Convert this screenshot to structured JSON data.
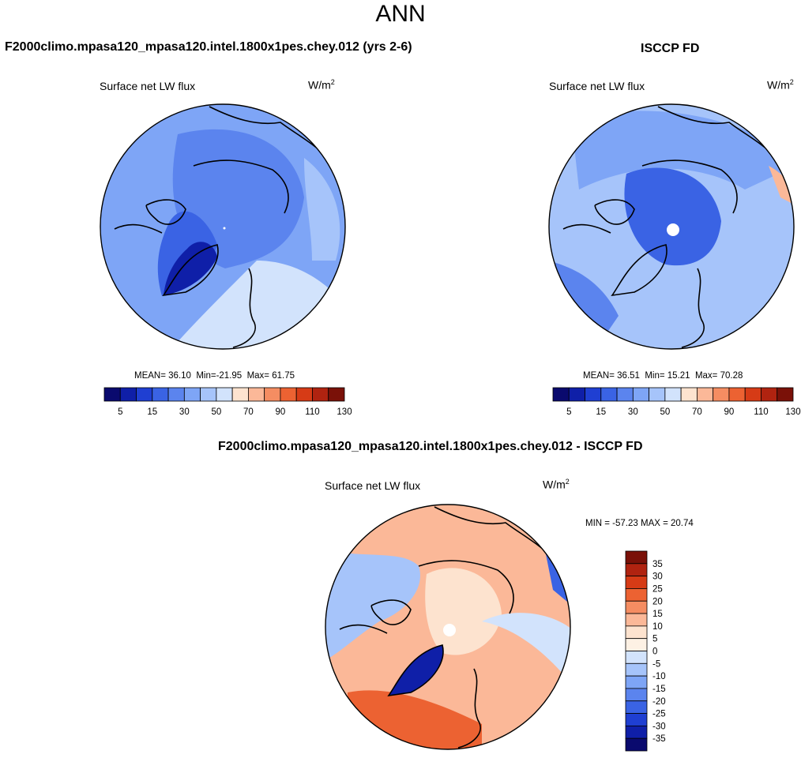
{
  "main_title": "ANN",
  "panels": [
    {
      "title": "F2000climo.mpasa120_mpasa120.intel.1800x1pes.chey.012 (yrs 2-6)",
      "variable": "Surface net LW flux",
      "units_base": "W/m",
      "units_exp": "2",
      "stats": {
        "mean_label": "MEAN=",
        "mean": "36.10",
        "min_label": "Min=",
        "min": "-21.95",
        "max_label": "Max=",
        "max": "61.75"
      }
    },
    {
      "title": "ISCCP FD",
      "variable": "Surface net LW flux",
      "units_base": "W/m",
      "units_exp": "2",
      "stats": {
        "mean_label": "MEAN=",
        "mean": "36.51",
        "min_label": "Min=",
        "min": "15.21",
        "max_label": "Max=",
        "max": "70.28"
      }
    },
    {
      "title": "F2000climo.mpasa120_mpasa120.intel.1800x1pes.chey.012 - ISCCP FD",
      "variable": "Surface net LW flux",
      "units_base": "W/m",
      "units_exp": "2",
      "stats_text": "MIN = -57.23 MAX =  20.74"
    }
  ],
  "colorbar_top": {
    "colors": [
      "#0a0a6e",
      "#0f1fa8",
      "#1f3fd2",
      "#3a63e4",
      "#5b84ee",
      "#7ea5f6",
      "#a6c4fa",
      "#d2e3fc",
      "#fde3cf",
      "#fbb898",
      "#f58d62",
      "#ec6232",
      "#d63b16",
      "#b02310",
      "#7a1108"
    ],
    "tick_labels": [
      "5",
      "15",
      "30",
      "50",
      "70",
      "90",
      "110",
      "130"
    ]
  },
  "colorbar_diff": {
    "colors": [
      "#7a1108",
      "#b02310",
      "#d63b16",
      "#ec6232",
      "#f58d62",
      "#fbb898",
      "#fde3cf",
      "#fdf1e4",
      "#d2e3fc",
      "#a6c4fa",
      "#7ea5f6",
      "#5b84ee",
      "#3a63e4",
      "#1f3fd2",
      "#0f1fa8",
      "#0a0a6e"
    ],
    "tick_labels": [
      "35",
      "30",
      "25",
      "20",
      "15",
      "10",
      "5",
      "0",
      "-5",
      "-10",
      "-15",
      "-20",
      "-25",
      "-30",
      "-35"
    ]
  },
  "map_palette": {
    "land_line": "#000000",
    "model_base": "#7ea5f6",
    "obs_base": "#a6c4fa",
    "diff_base": "#fbb898"
  }
}
